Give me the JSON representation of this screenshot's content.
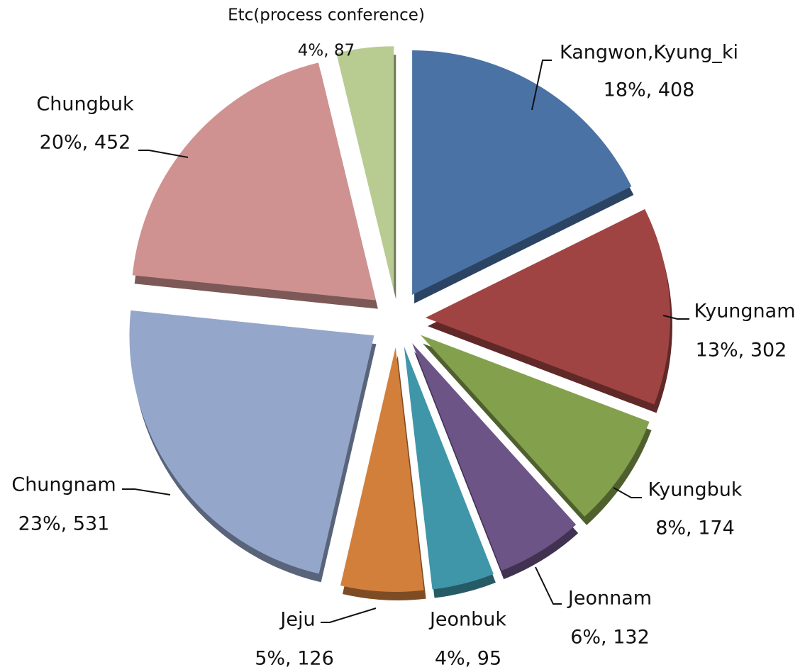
{
  "chart_data": {
    "type": "pie",
    "categories": [
      "Kangwon,Kyung_ki",
      "Kyungnam",
      "Kyungbuk",
      "Jeonnam",
      "Jeonbuk",
      "Jeju",
      "Chungnam",
      "Chungbuk",
      "Etc(process conference)"
    ],
    "values": [
      408,
      302,
      174,
      132,
      95,
      126,
      531,
      452,
      87
    ],
    "value_labels": [
      "18%, 408",
      "13%,  302",
      "8%, 174",
      "6%, 132",
      "4%, 95",
      "5%, 126",
      "23%, 531",
      "20%, 452",
      "4%, 87"
    ],
    "colors": [
      "#4a72a5",
      "#a04443",
      "#83a04c",
      "#6c5487",
      "#3f96a9",
      "#d27f3c",
      "#94a7cb",
      "#cf9291",
      "#b8cc92"
    ]
  }
}
